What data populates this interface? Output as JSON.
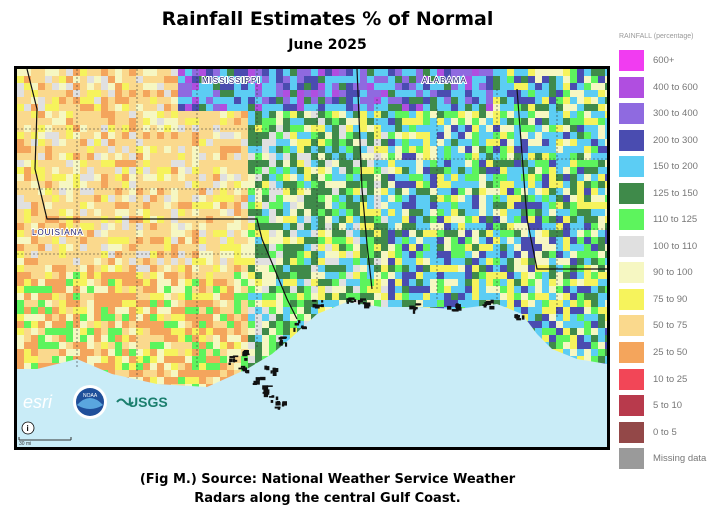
{
  "title": "Rainfall Estimates % of Normal",
  "subtitle": "June 2025",
  "map": {
    "labels": {
      "mississippi": "MISSISSIPPI",
      "alabama": "ALABAMA",
      "louisiana": "LOUISIANA"
    },
    "scale_text": "30 mi",
    "water_color": "#c9ecf7",
    "logos": {
      "esri": "esri",
      "noaa": "NOAA",
      "usgs": "USGS"
    }
  },
  "legend": {
    "title": "RAINFALL (percentage)",
    "items": [
      {
        "label": "600+",
        "color": "#f13cf1"
      },
      {
        "label": "400 to 600",
        "color": "#b04ee0"
      },
      {
        "label": "300 to 400",
        "color": "#8f6ae0"
      },
      {
        "label": "200 to 300",
        "color": "#4a4cb0"
      },
      {
        "label": "150 to 200",
        "color": "#5ccdf4"
      },
      {
        "label": "125 to 150",
        "color": "#3f8a4a"
      },
      {
        "label": "110 to 125",
        "color": "#5df45d"
      },
      {
        "label": "100 to 110",
        "color": "#e0e0e0"
      },
      {
        "label": "90 to 100",
        "color": "#f6f7c2"
      },
      {
        "label": "75 to 90",
        "color": "#f6f35c"
      },
      {
        "label": "50 to 75",
        "color": "#fad98d"
      },
      {
        "label": "25 to 50",
        "color": "#f4a55c"
      },
      {
        "label": "10 to 25",
        "color": "#f24657"
      },
      {
        "label": "5 to 10",
        "color": "#b83a4c"
      },
      {
        "label": "0 to 5",
        "color": "#934848"
      },
      {
        "label": "Missing data",
        "color": "#9a9a9a"
      }
    ]
  },
  "caption": {
    "line1": "(Fig M.) Source: National Weather Service Weather",
    "line2": "Radars along the central Gulf Coast."
  }
}
